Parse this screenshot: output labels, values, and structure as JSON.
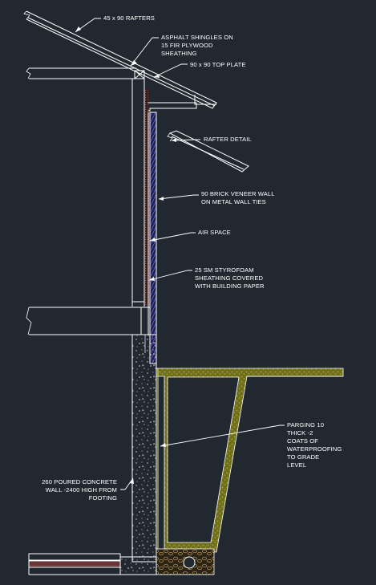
{
  "drawing": {
    "background": "#212830",
    "line_color": "#ffffff",
    "brick_color": "#4a4ab0",
    "styrofoam_color": "#d84848",
    "insulation_color": "#e04848",
    "soil_color": "#8a8a20",
    "gravel_color": "#c8a050"
  },
  "labels": {
    "rafters": [
      "45 x 90 RAFTERS"
    ],
    "shingles": [
      "ASPHALT SHINGLES ON",
      "15 FIR PLYWOOD",
      "SHEATHING"
    ],
    "top_plate": [
      "90 x 90 TOP PLATE"
    ],
    "rafter_detail": [
      "RAFTER DETAIL"
    ],
    "brick": [
      "90 BRICK VENEER WALL",
      "ON METAL WALL TIES"
    ],
    "air_space": [
      "AIR SPACE"
    ],
    "styrofoam": [
      "25 SM STYROFOAM",
      "SHEATHING COVERED",
      "WITH BUILDING PAPER"
    ],
    "parging": [
      "PARGING 10",
      "THICK -2",
      "COATS OF",
      "WATERPROOFING",
      "TO GRADE",
      "LEVEL"
    ],
    "foundation": [
      "260 POURED CONCRETE",
      "WALL -2400 HIGH FROM",
      "FOOTING"
    ]
  }
}
